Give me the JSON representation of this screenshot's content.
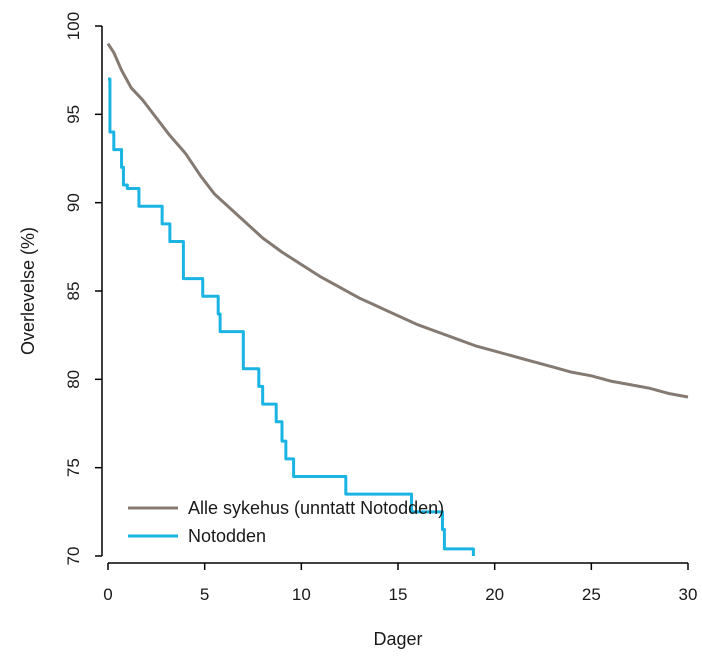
{
  "chart_data": {
    "type": "line",
    "xlabel": "Dager",
    "ylabel": "Overlevelse (%)",
    "xlim": [
      0,
      30
    ],
    "ylim": [
      70,
      100
    ],
    "xticks": [
      0,
      5,
      10,
      15,
      20,
      25,
      30
    ],
    "yticks": [
      70,
      75,
      80,
      85,
      90,
      95,
      100
    ],
    "grid": false,
    "legend": "bottom-left",
    "series": [
      {
        "name": "Alle sykehus (unntatt Notodden)",
        "color": "#857a72",
        "step": false,
        "x": [
          0,
          0.3,
          0.7,
          1.2,
          1.8,
          2.5,
          3.2,
          4.0,
          4.8,
          5.5,
          6.3,
          7.2,
          8.0,
          9.0,
          10.0,
          11.0,
          12.0,
          13.0,
          14.0,
          15.0,
          16.0,
          17.0,
          18.0,
          19.0,
          20.0,
          21.0,
          22.0,
          23.0,
          24.0,
          25.0,
          26.0,
          27.0,
          28.0,
          29.0,
          30.0
        ],
        "y": [
          99.0,
          98.5,
          97.5,
          96.5,
          95.8,
          94.8,
          93.8,
          92.8,
          91.5,
          90.5,
          89.7,
          88.8,
          88.0,
          87.2,
          86.5,
          85.8,
          85.2,
          84.6,
          84.1,
          83.6,
          83.1,
          82.7,
          82.3,
          81.9,
          81.6,
          81.3,
          81.0,
          80.7,
          80.4,
          80.2,
          79.9,
          79.7,
          79.5,
          79.2,
          79.0
        ]
      },
      {
        "name": "Notodden",
        "color": "#1ab4e3",
        "step": true,
        "x": [
          0,
          0.1,
          0.3,
          0.7,
          0.8,
          1.0,
          1.6,
          2.8,
          3.2,
          3.9,
          4.9,
          5.7,
          5.8,
          7.0,
          7.8,
          8.0,
          8.7,
          9.0,
          9.2,
          9.6,
          12.3,
          15.7,
          17.3,
          17.4,
          18.9
        ],
        "y": [
          97,
          94,
          93,
          92,
          91,
          90.8,
          89.8,
          88.8,
          87.8,
          85.7,
          84.7,
          83.7,
          82.7,
          80.6,
          79.6,
          78.6,
          77.6,
          76.5,
          75.5,
          74.5,
          73.5,
          72.5,
          71.5,
          70.4,
          70
        ]
      }
    ]
  }
}
